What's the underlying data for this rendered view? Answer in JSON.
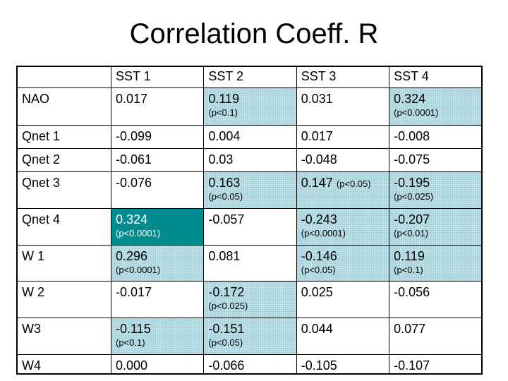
{
  "title": "Correlation Coeff. R",
  "table": {
    "columns": [
      "",
      "SST 1",
      "SST 2",
      "SST 3",
      "SST 4"
    ],
    "rows": [
      {
        "label": "NAO",
        "cells": [
          {
            "value": "0.017",
            "note": "",
            "hl": "none"
          },
          {
            "value": "0.119",
            "note": "(p<0.1)",
            "hl": "light"
          },
          {
            "value": "0.031",
            "note": "",
            "hl": "none"
          },
          {
            "value": "0.324",
            "note": "(p<0.0001)",
            "hl": "light"
          }
        ]
      },
      {
        "label": "Qnet 1",
        "cells": [
          {
            "value": "-0.099",
            "note": "",
            "hl": "none"
          },
          {
            "value": "0.004",
            "note": "",
            "hl": "none"
          },
          {
            "value": "0.017",
            "note": "",
            "hl": "none"
          },
          {
            "value": "-0.008",
            "note": "",
            "hl": "none"
          }
        ]
      },
      {
        "label": "Qnet 2",
        "cells": [
          {
            "value": "-0.061",
            "note": "",
            "hl": "none"
          },
          {
            "value": "0.03",
            "note": "",
            "hl": "none"
          },
          {
            "value": "-0.048",
            "note": "",
            "hl": "none"
          },
          {
            "value": "-0.075",
            "note": "",
            "hl": "none"
          }
        ]
      },
      {
        "label": "Qnet 3",
        "cells": [
          {
            "value": "-0.076",
            "note": "",
            "hl": "none"
          },
          {
            "value": "0.163",
            "note": "(p<0.05)",
            "hl": "light"
          },
          {
            "value": "0.147",
            "note": "(p<0.05)",
            "hl": "light",
            "inline": true
          },
          {
            "value": "-0.195",
            "note": "(p<0.025)",
            "hl": "light"
          }
        ]
      },
      {
        "label": "Qnet 4",
        "cells": [
          {
            "value": "0.324",
            "note": "(p<0.0001)",
            "hl": "strong"
          },
          {
            "value": "-0.057",
            "note": "",
            "hl": "none"
          },
          {
            "value": "-0.243",
            "note": "(p<0.0001)",
            "hl": "light"
          },
          {
            "value": "-0.207",
            "note": "(p<0.01)",
            "hl": "light"
          }
        ]
      },
      {
        "label": "W 1",
        "cells": [
          {
            "value": "0.296",
            "note": "(p<0.0001)",
            "hl": "light"
          },
          {
            "value": "0.081",
            "note": "",
            "hl": "none"
          },
          {
            "value": "-0.146",
            "note": "(p<0.05)",
            "hl": "light"
          },
          {
            "value": "0.119",
            "note": "(p<0.1)",
            "hl": "light"
          }
        ]
      },
      {
        "label": "W 2",
        "cells": [
          {
            "value": "-0.017",
            "note": "",
            "hl": "none"
          },
          {
            "value": "-0.172",
            "note": "(p<0.025)",
            "hl": "light"
          },
          {
            "value": "0.025",
            "note": "",
            "hl": "none"
          },
          {
            "value": "-0.056",
            "note": "",
            "hl": "none"
          }
        ]
      },
      {
        "label": "W3",
        "cells": [
          {
            "value": "-0.115",
            "note": "(p<0.1)",
            "hl": "light"
          },
          {
            "value": "-0.151",
            "note": "(p<0.05)",
            "hl": "light"
          },
          {
            "value": "0.044",
            "note": "",
            "hl": "none"
          },
          {
            "value": "0.077",
            "note": "",
            "hl": "none"
          }
        ]
      },
      {
        "label": "W4",
        "cells": [
          {
            "value": "0.000",
            "note": "",
            "hl": "none"
          },
          {
            "value": "-0.066",
            "note": "",
            "hl": "none"
          },
          {
            "value": "-0.105",
            "note": "",
            "hl": "none"
          },
          {
            "value": "-0.107",
            "note": "",
            "hl": "none"
          }
        ]
      }
    ]
  },
  "colors": {
    "highlight_light": "#bfe1e8",
    "highlight_strong": "#008b8f"
  }
}
